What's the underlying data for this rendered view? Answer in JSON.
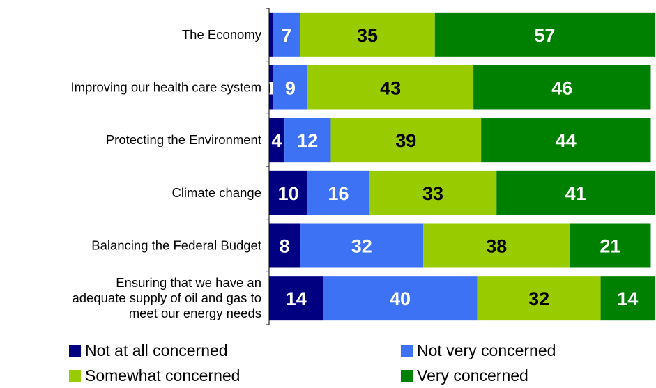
{
  "chart_data": {
    "type": "bar",
    "orientation": "horizontal",
    "stacked": true,
    "categories": [
      "The Economy",
      "Improving our health care system",
      "Protecting the Environment",
      "Climate change",
      "Balancing the Federal Budget",
      "Ensuring that we have an adequate supply of oil and gas to meet our energy needs"
    ],
    "category_lines": [
      [
        "The Economy"
      ],
      [
        "Improving our health care system"
      ],
      [
        "Protecting the Environment"
      ],
      [
        "Climate change"
      ],
      [
        "Balancing the Federal Budget"
      ],
      [
        "Ensuring that we have an",
        "adequate supply of oil and gas to",
        "meet our energy needs"
      ]
    ],
    "series": [
      {
        "name": "Not at all concerned",
        "color": "#000080",
        "label_color": "#ffffff",
        "values": [
          1,
          1,
          4,
          10,
          8,
          14
        ],
        "labels": [
          "",
          "1",
          "4",
          "10",
          "8",
          "14"
        ]
      },
      {
        "name": "Not very concerned",
        "color": "#3d72f5",
        "label_color": "#ffffff",
        "values": [
          7,
          9,
          12,
          16,
          32,
          40
        ],
        "labels": [
          "7",
          "9",
          "12",
          "16",
          "32",
          "40"
        ]
      },
      {
        "name": "Somewhat concerned",
        "color": "#99cc00",
        "label_color": "#000000",
        "values": [
          35,
          43,
          39,
          33,
          38,
          32
        ],
        "labels": [
          "35",
          "43",
          "39",
          "33",
          "38",
          "32"
        ]
      },
      {
        "name": "Very concerned",
        "color": "#008000",
        "label_color": "#ffffff",
        "values": [
          57,
          46,
          44,
          41,
          21,
          14
        ],
        "labels": [
          "57",
          "46",
          "44",
          "41",
          "21",
          "14"
        ]
      }
    ],
    "legend": {
      "placement": "bottom",
      "items": [
        "Not at all concerned",
        "Not very concerned",
        "Somewhat concerned",
        "Very concerned"
      ]
    },
    "title": "",
    "xlabel": "",
    "ylabel": "",
    "xlim": [
      0,
      100
    ],
    "grid": false
  }
}
